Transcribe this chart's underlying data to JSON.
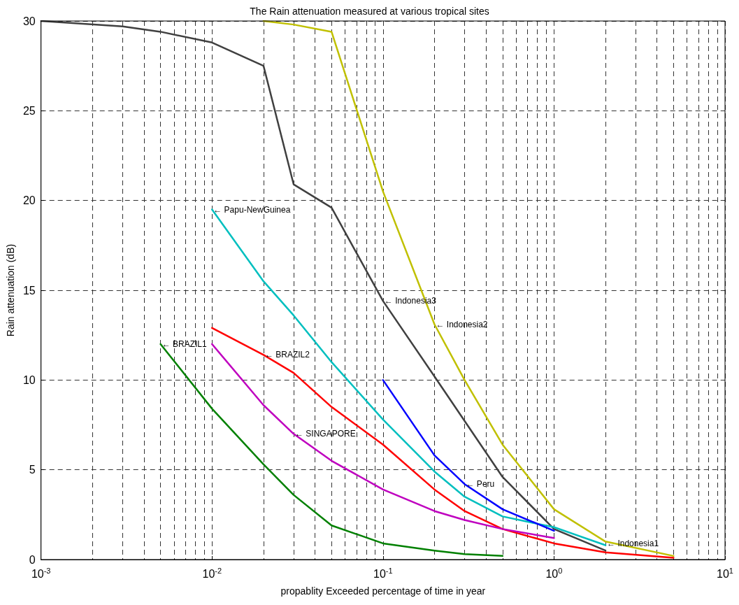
{
  "chart_data": {
    "type": "line",
    "title": "The Rain attenuation measured at various tropical sites",
    "xlabel": "propablity Exceeded percentage of time in year",
    "ylabel": "Rain attenuation (dB)",
    "log": "x",
    "grid": true,
    "marker": "none",
    "line_style": "solid",
    "xlim": [
      0.001,
      10
    ],
    "xticks": [
      {
        "value": 0.001,
        "label": "10$^{-3}$"
      },
      {
        "value": 0.01,
        "label": "10$^{-2}$"
      },
      {
        "value": 0.1,
        "label": "10$^{-1}$"
      },
      {
        "value": 1,
        "label": "10$^{0}$"
      },
      {
        "value": 10,
        "label": "10$^{1}$"
      }
    ],
    "ylim": [
      0,
      30
    ],
    "yticks": [
      0,
      5,
      10,
      15,
      20,
      25,
      30
    ],
    "series": [
      {
        "color": "#404040",
        "x": [
          0.001,
          0.003,
          0.005,
          0.01,
          0.02,
          0.03,
          0.05,
          0.1,
          0.2,
          0.5,
          1,
          2
        ],
        "values": [
          30,
          29.7,
          29.4,
          28.8,
          27.5,
          20.9,
          19.6,
          14.4,
          10.2,
          4.6,
          1.7,
          0.5
        ]
      },
      {
        "color": "#c0c000",
        "x": [
          0.02,
          0.03,
          0.05,
          0.1,
          0.2,
          0.3,
          0.5,
          1,
          2,
          5
        ],
        "values": [
          30,
          29.8,
          29.4,
          20.5,
          13.1,
          10,
          6.4,
          2.8,
          1.0,
          0.2
        ]
      },
      {
        "color": "#00bfbf",
        "x": [
          0.01,
          0.02,
          0.03,
          0.05,
          0.1,
          0.2,
          0.3,
          0.5,
          1,
          2
        ],
        "values": [
          19.5,
          15.5,
          13.6,
          11.0,
          7.8,
          4.9,
          3.5,
          2.4,
          1.8,
          0.8
        ]
      },
      {
        "color": "#ff0000",
        "x": [
          0.01,
          0.02,
          0.03,
          0.05,
          0.1,
          0.2,
          0.3,
          0.5,
          1,
          2,
          5
        ],
        "values": [
          12.9,
          11.4,
          10.4,
          8.5,
          6.4,
          3.9,
          2.7,
          1.7,
          0.9,
          0.4,
          0.1
        ]
      },
      {
        "color": "#bf00bf",
        "x": [
          0.01,
          0.02,
          0.03,
          0.05,
          0.1,
          0.2,
          0.3,
          0.5,
          1
        ],
        "values": [
          12.0,
          8.6,
          7.0,
          5.5,
          3.9,
          2.7,
          2.2,
          1.7,
          1.2
        ]
      },
      {
        "color": "#008000",
        "x": [
          0.005,
          0.01,
          0.02,
          0.03,
          0.05,
          0.1,
          0.2,
          0.3,
          0.5
        ],
        "values": [
          12.0,
          8.4,
          5.3,
          3.6,
          1.9,
          0.9,
          0.5,
          0.3,
          0.2
        ]
      },
      {
        "color": "#0000ff",
        "x": [
          0.1,
          0.2,
          0.3,
          0.5,
          1
        ],
        "values": [
          10,
          5.8,
          4.2,
          2.8,
          1.6
        ]
      }
    ],
    "annotations": [
      {
        "text": "← Papu-NewGuinea",
        "x": 0.01,
        "y": 19.5
      },
      {
        "text": "← BRAZIL1",
        "x": 0.005,
        "y": 12.0
      },
      {
        "text": "← BRAZIL2",
        "x": 0.02,
        "y": 11.4
      },
      {
        "text": "← SINGAPORE",
        "x": 0.03,
        "y": 7.0
      },
      {
        "text": "← Indonesia3",
        "x": 0.1,
        "y": 14.4
      },
      {
        "text": "← Indonesia2",
        "x": 0.2,
        "y": 13.1
      },
      {
        "text": "← Peru",
        "x": 0.3,
        "y": 4.2
      },
      {
        "text": "← Indonesia1",
        "x": 2,
        "y": 0.9
      }
    ]
  }
}
